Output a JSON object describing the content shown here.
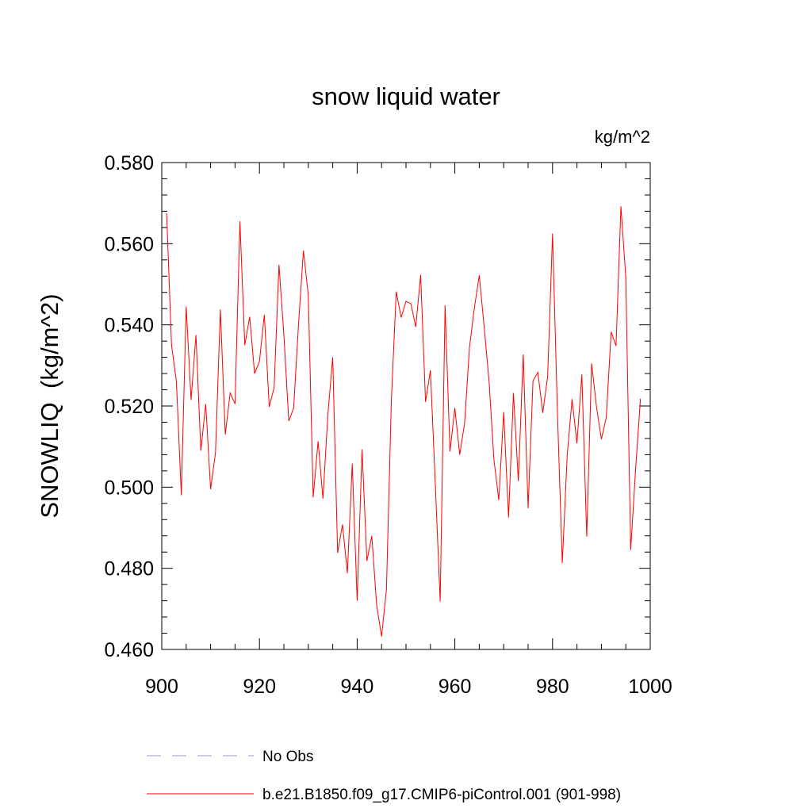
{
  "chart_data": {
    "type": "line",
    "title": "snow liquid water",
    "units_label": "kg/m^2",
    "xlabel": "",
    "ylabel": "SNOWLIQ  (kg/m^2)",
    "xlim": [
      900,
      1000
    ],
    "ylim": [
      0.46,
      0.58
    ],
    "x_ticks": [
      900,
      920,
      940,
      960,
      980,
      1000
    ],
    "y_ticks": [
      0.46,
      0.48,
      0.5,
      0.52,
      0.54,
      0.56,
      0.58
    ],
    "y_tick_labels": [
      "0.460",
      "0.480",
      "0.500",
      "0.520",
      "0.540",
      "0.560",
      "0.580"
    ],
    "grid": false,
    "series": [
      {
        "name": "b.e21.B1850.f09_g17.CMIP6-piControl.001 (901-998)",
        "color": "#ff0000",
        "style": "solid",
        "x": [
          901,
          902,
          903,
          904,
          905,
          906,
          907,
          908,
          909,
          910,
          911,
          912,
          913,
          914,
          915,
          916,
          917,
          918,
          919,
          920,
          921,
          922,
          923,
          924,
          925,
          926,
          927,
          928,
          929,
          930,
          931,
          932,
          933,
          934,
          935,
          936,
          937,
          938,
          939,
          940,
          941,
          942,
          943,
          944,
          945,
          946,
          947,
          948,
          949,
          950,
          951,
          952,
          953,
          954,
          955,
          956,
          957,
          958,
          959,
          960,
          961,
          962,
          963,
          964,
          965,
          966,
          967,
          968,
          969,
          970,
          971,
          972,
          973,
          974,
          975,
          976,
          977,
          978,
          979,
          980,
          981,
          982,
          983,
          984,
          985,
          986,
          987,
          988,
          989,
          990,
          991,
          992,
          993,
          994,
          995,
          996,
          997,
          998
        ],
        "values": [
          0.5675,
          0.535,
          0.526,
          0.498,
          0.5445,
          0.5215,
          0.5375,
          0.509,
          0.5205,
          0.4995,
          0.5085,
          0.5438,
          0.513,
          0.5232,
          0.5205,
          0.5655,
          0.535,
          0.542,
          0.528,
          0.531,
          0.5425,
          0.5198,
          0.5245,
          0.5548,
          0.5375,
          0.5163,
          0.5195,
          0.5402,
          0.5583,
          0.5473,
          0.4975,
          0.5113,
          0.4972,
          0.5178,
          0.532,
          0.4838,
          0.4908,
          0.4788,
          0.5058,
          0.472,
          0.5093,
          0.4818,
          0.488,
          0.4708,
          0.4632,
          0.4748,
          0.5213,
          0.5482,
          0.5418,
          0.5458,
          0.5452,
          0.5395,
          0.5523,
          0.521,
          0.5288,
          0.5008,
          0.4718,
          0.5448,
          0.5088,
          0.5195,
          0.508,
          0.5158,
          0.5345,
          0.5442,
          0.5522,
          0.5395,
          0.5262,
          0.5068,
          0.4968,
          0.5185,
          0.4925,
          0.5232,
          0.5015,
          0.5327,
          0.4948,
          0.5262,
          0.5283,
          0.5183,
          0.5273,
          0.5625,
          0.5185,
          0.4813,
          0.5078,
          0.5217,
          0.5108,
          0.5278,
          0.4878,
          0.5305,
          0.5198,
          0.5118,
          0.5172,
          0.5383,
          0.5348,
          0.5692,
          0.5517,
          0.4845,
          0.5043,
          0.5218
        ]
      },
      {
        "name": "No Obs",
        "color": "#9a96d0",
        "style": "dashed",
        "x": [],
        "values": []
      }
    ],
    "legend_placement": "bottom"
  }
}
